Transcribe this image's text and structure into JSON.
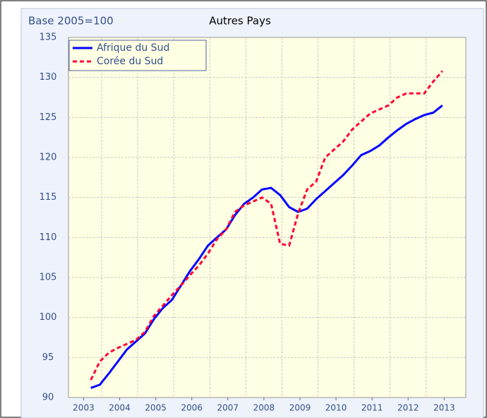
{
  "chart_data": {
    "type": "line",
    "title": "Autres Pays",
    "subtitle": "Base 2005=100",
    "x": [
      2003.7,
      2003.95,
      2004.2,
      2004.45,
      2004.7,
      2004.95,
      2005.2,
      2005.45,
      2005.7,
      2005.95,
      2006.2,
      2006.45,
      2006.7,
      2006.95,
      2007.2,
      2007.45,
      2007.7,
      2007.95,
      2008.2,
      2008.45,
      2008.7,
      2008.95,
      2009.2,
      2009.45,
      2009.7,
      2009.95,
      2010.2,
      2010.45,
      2010.7,
      2010.95,
      2011.2,
      2011.45,
      2011.7,
      2011.95,
      2012.2,
      2012.45,
      2012.7,
      2012.95,
      2013.2,
      2013.45
    ],
    "series": [
      {
        "name": "Afrique du Sud",
        "color": "#0000ff",
        "dash": false,
        "values": [
          91.2,
          91.6,
          93.0,
          94.5,
          96.0,
          97.0,
          98.0,
          99.8,
          101.2,
          102.2,
          104.0,
          105.8,
          107.3,
          109.0,
          110.0,
          111.0,
          112.8,
          114.2,
          115.0,
          116.0,
          116.2,
          115.3,
          113.8,
          113.2,
          113.6,
          114.8,
          115.8,
          116.8,
          117.8,
          119.0,
          120.3,
          120.8,
          121.5,
          122.5,
          123.4,
          124.2,
          124.8,
          125.3,
          125.6,
          126.5
        ]
      },
      {
        "name": "Corée du Sud",
        "color": "#ff0033",
        "dash": true,
        "values": [
          92.2,
          94.5,
          95.6,
          96.2,
          96.7,
          97.2,
          98.2,
          100.2,
          101.5,
          102.8,
          104.0,
          105.3,
          106.5,
          108.0,
          109.8,
          111.0,
          113.2,
          114.0,
          114.5,
          115.0,
          114.2,
          109.2,
          109.0,
          113.0,
          116.0,
          117.0,
          120.0,
          121.0,
          122.0,
          123.5,
          124.5,
          125.5,
          126.0,
          126.5,
          127.5,
          128.0,
          128.0,
          128.0,
          129.5,
          130.8
        ]
      }
    ],
    "xlim": [
      2003.08,
      2014.1
    ],
    "xticks": [
      {
        "value": 2003.5,
        "label": "2003"
      },
      {
        "value": 2004.5,
        "label": "2004"
      },
      {
        "value": 2005.5,
        "label": "2005"
      },
      {
        "value": 2006.5,
        "label": "2006"
      },
      {
        "value": 2007.5,
        "label": "2007"
      },
      {
        "value": 2008.5,
        "label": "2008"
      },
      {
        "value": 2009.5,
        "label": "2009"
      },
      {
        "value": 2010.5,
        "label": "2010"
      },
      {
        "value": 2011.5,
        "label": "2011"
      },
      {
        "value": 2012.5,
        "label": "2012"
      },
      {
        "value": 2013.5,
        "label": "2013"
      }
    ],
    "ylim": [
      90,
      135
    ],
    "yticks": [
      90,
      95,
      100,
      105,
      110,
      115,
      120,
      125,
      130,
      135
    ],
    "grid": true,
    "legend": "top-left"
  }
}
